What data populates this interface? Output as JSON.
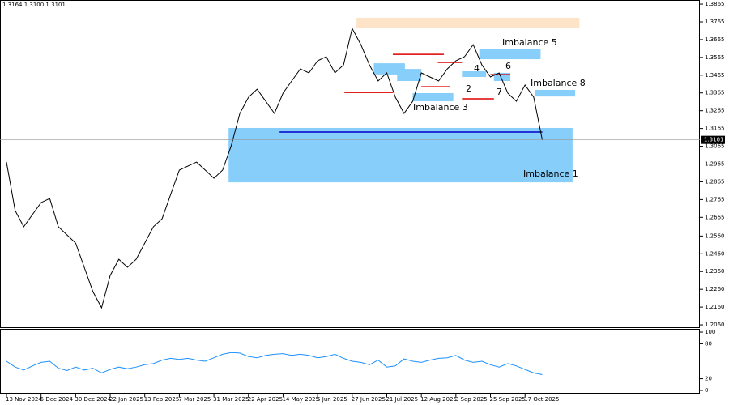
{
  "header": {
    "quote": "1.3164 1.3100 1.3101"
  },
  "chart_data": [
    {
      "type": "line",
      "categories": [
        "13 Nov 2024",
        null,
        null,
        null,
        "5 Dec 2024",
        null,
        null,
        null,
        "30 Dec 2024",
        null,
        null,
        null,
        "22 Jan 2025",
        null,
        null,
        null,
        "13 Feb 2025",
        null,
        null,
        null,
        "7 Mar 2025",
        null,
        null,
        null,
        "31 Mar 2025",
        null,
        null,
        null,
        "22 Apr 2025",
        null,
        null,
        null,
        "14 May 2025",
        null,
        null,
        null,
        "5 Jun 2025",
        null,
        null,
        null,
        "27 Jun 2025",
        null,
        null,
        null,
        "21 Jul 2025",
        null,
        null,
        null,
        "12 Aug 2025",
        null,
        null,
        null,
        "3 Sep 2025",
        null,
        null,
        null,
        "25 Sep 2025",
        null,
        null,
        null,
        "17 Oct 2025",
        null,
        null
      ],
      "values": [
        1.2976,
        1.2703,
        1.2612,
        1.268,
        1.2748,
        1.2771,
        1.2612,
        1.2566,
        1.252,
        1.2384,
        1.2247,
        1.2156,
        1.2338,
        1.2429,
        1.2384,
        1.2429,
        1.252,
        1.2612,
        1.2657,
        1.2794,
        1.2931,
        1.2954,
        1.2976,
        1.2931,
        1.2885,
        1.2931,
        1.3067,
        1.325,
        1.3341,
        1.3386,
        1.3318,
        1.325,
        1.3364,
        1.3432,
        1.35,
        1.3478,
        1.3546,
        1.3569,
        1.3478,
        1.3523,
        1.3728,
        1.3637,
        1.3523,
        1.3432,
        1.3478,
        1.3341,
        1.325,
        1.3318,
        1.3478,
        1.3455,
        1.3432,
        1.35,
        1.3546,
        1.3569,
        1.3637,
        1.3523,
        1.3455,
        1.3478,
        1.3364,
        1.3318,
        1.341,
        1.3341,
        1.3101
      ],
      "color": "#000000",
      "current_price": 1.3101,
      "ylim": [
        1.2042,
        1.3888
      ],
      "yticks": [
        {
          "value": 1.206,
          "label": "1.2060"
        },
        {
          "value": 1.216,
          "label": "1.2160"
        },
        {
          "value": 1.226,
          "label": "1.2260"
        },
        {
          "value": 1.236,
          "label": "1.2360"
        },
        {
          "value": 1.246,
          "label": "1.2460"
        },
        {
          "value": 1.256,
          "label": "1.2560"
        },
        {
          "value": 1.2665,
          "label": "1.2665"
        },
        {
          "value": 1.2765,
          "label": "1.2765"
        },
        {
          "value": 1.2865,
          "label": "1.2865"
        },
        {
          "value": 1.2965,
          "label": "1.2965"
        },
        {
          "value": 1.3065,
          "label": "1.3065"
        },
        {
          "value": 1.3165,
          "label": "1.3165"
        },
        {
          "value": 1.3265,
          "label": "1.3265"
        },
        {
          "value": 1.3365,
          "label": "1.3365"
        },
        {
          "value": 1.3465,
          "label": "1.3465"
        },
        {
          "value": 1.3565,
          "label": "1.3565"
        },
        {
          "value": 1.3665,
          "label": "1.3665"
        },
        {
          "value": 1.3765,
          "label": "1.3765"
        },
        {
          "value": 1.3865,
          "label": "1.3865"
        }
      ],
      "zones": [
        {
          "range": [
            1.2862,
            1.3168
          ],
          "from": 25.7,
          "to": 65.5,
          "color": "#87cefa"
        },
        {
          "range": [
            1.3728,
            1.3788
          ],
          "from": 40.5,
          "to": 66.3,
          "color": "#fde4c8"
        },
        {
          "range": [
            1.3555,
            1.3614
          ],
          "from": 54.7,
          "to": 61.8,
          "color": "#87cefa"
        },
        {
          "range": [
            1.3345,
            1.3382
          ],
          "from": 61.1,
          "to": 65.8,
          "color": "#87cefa"
        },
        {
          "range": [
            1.3469,
            1.3532
          ],
          "from": 42.5,
          "to": 46.1,
          "color": "#87cefa"
        },
        {
          "range": [
            1.3432,
            1.35
          ],
          "from": 45.2,
          "to": 48,
          "color": "#87cefa"
        },
        {
          "range": [
            1.3318,
            1.3364
          ],
          "from": 47,
          "to": 51.7,
          "color": "#87cefa"
        },
        {
          "range": [
            1.3455,
            1.3487
          ],
          "from": 52.7,
          "to": 55.5,
          "color": "#87cefa"
        },
        {
          "range": [
            1.3432,
            1.3478
          ],
          "from": 56.4,
          "to": 58.3,
          "color": "#87cefa"
        }
      ],
      "levels": [
        {
          "price": 1.3145,
          "from": 31.6,
          "to": 62,
          "color": "#0000cd"
        },
        {
          "price": 1.3582,
          "from": 44.7,
          "to": 50.6,
          "color": "#dd0000"
        },
        {
          "price": 1.3368,
          "from": 39.1,
          "to": 44.7,
          "color": "#dd0000"
        },
        {
          "price": 1.3537,
          "from": 49.9,
          "to": 52.7,
          "color": "#dd0000"
        },
        {
          "price": 1.34,
          "from": 48,
          "to": 51.3,
          "color": "#dd0000"
        },
        {
          "price": 1.3332,
          "from": 52.7,
          "to": 56.4,
          "color": "#dd0000"
        },
        {
          "price": 1.3468,
          "from": 56,
          "to": 58.3,
          "color": "#dd0000"
        }
      ],
      "annotations": [
        "Imbalance 1",
        "Imbalance 3",
        "Imbalance 5",
        "Imbalance 8",
        "2",
        "4",
        "6",
        "7"
      ]
    },
    {
      "type": "line",
      "values": [
        50,
        40,
        35,
        42,
        48,
        50,
        38,
        34,
        40,
        35,
        38,
        30,
        36,
        40,
        37,
        40,
        44,
        46,
        52,
        55,
        53,
        55,
        52,
        50,
        56,
        62,
        65,
        64,
        58,
        56,
        60,
        62,
        63,
        60,
        62,
        60,
        56,
        58,
        62,
        55,
        50,
        48,
        44,
        52,
        40,
        42,
        54,
        50,
        48,
        52,
        55,
        56,
        60,
        52,
        48,
        50,
        44,
        40,
        46,
        42,
        36,
        30,
        27
      ],
      "color": "#1e90ff",
      "ylim": [
        -5.6,
        104.2
      ],
      "yticks": [
        100,
        80,
        20,
        0
      ]
    }
  ]
}
